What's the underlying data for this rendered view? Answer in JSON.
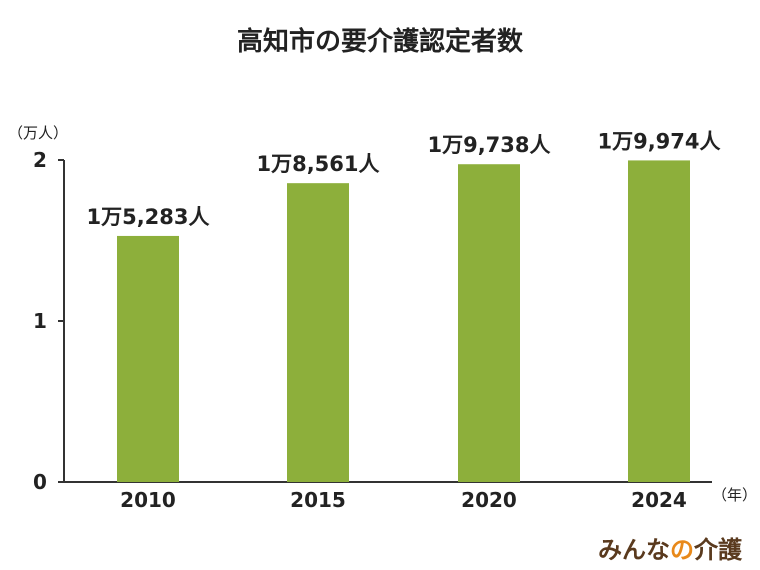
{
  "chart_data": {
    "type": "bar",
    "title": "高知市の要介護認定者数",
    "y_unit_label": "（万人）",
    "x_unit_label": "（年）",
    "categories": [
      "2010",
      "2015",
      "2020",
      "2024"
    ],
    "values": [
      1.5283,
      1.8561,
      1.9738,
      1.9974
    ],
    "data_labels": [
      "1万5,283人",
      "1万8,561人",
      "1万9,738人",
      "1万9,974人"
    ],
    "ylim": [
      0,
      2
    ],
    "yticks": [
      "0",
      "1",
      "2"
    ],
    "grid": false,
    "bar_color": "#8daf3b"
  },
  "brand": {
    "logo_main": "みんな",
    "logo_accent": "の",
    "logo_end": "介護",
    "logo_color": "#5a3a1e",
    "accent_color": "#e8891a"
  }
}
